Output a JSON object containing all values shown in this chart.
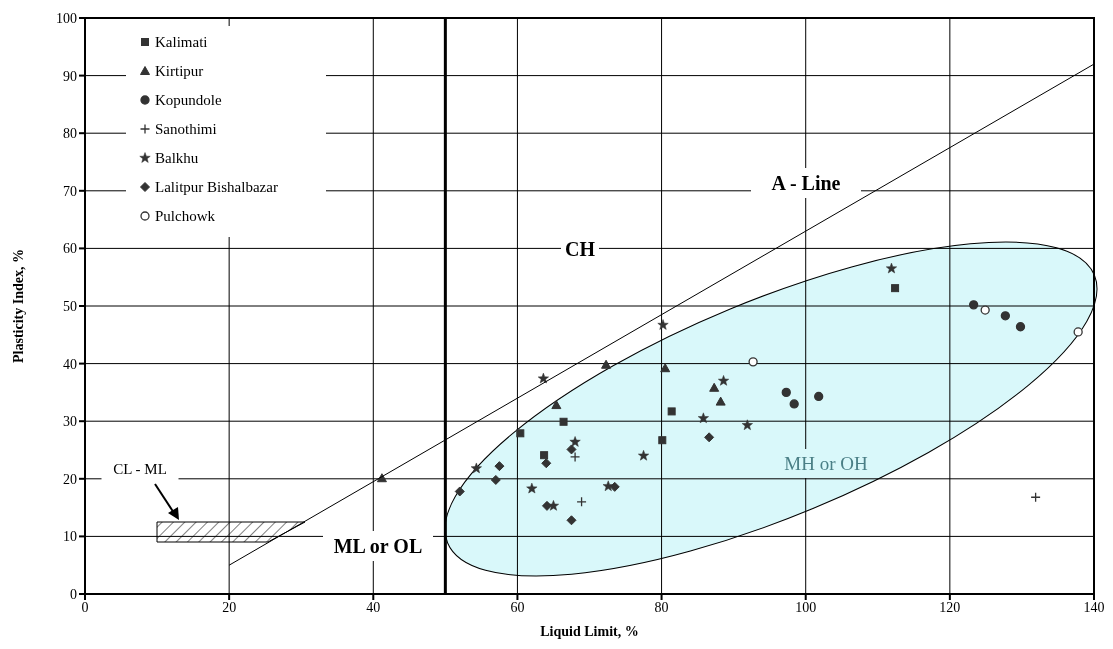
{
  "chart_data": {
    "type": "scatter",
    "xlabel": "Liquid Limit, %",
    "ylabel": "Plasticity Index, %",
    "xlim": [
      0,
      140
    ],
    "xticks": [
      0,
      20,
      40,
      60,
      80,
      100,
      120,
      140
    ],
    "ylim": [
      0,
      100
    ],
    "yticks": [
      0,
      10,
      20,
      30,
      40,
      50,
      60,
      70,
      80,
      90,
      100
    ],
    "grid": true,
    "legend": "top left",
    "annotations": [
      "CH",
      "A - Line",
      "MH or OH",
      "ML or OL",
      "CL - ML"
    ],
    "ref_lines": [
      {
        "axis": "x",
        "value": 50,
        "color": "#000000"
      }
    ],
    "series": [
      {
        "name": "Kalimati",
        "color": "#333333",
        "marker": "square",
        "x": [
          60.4,
          63.7,
          66.4,
          80.1,
          81.4,
          112.4
        ],
        "values": [
          27.9,
          24.1,
          29.9,
          26.7,
          31.7,
          53.1
        ]
      },
      {
        "name": "Kirtipur",
        "color": "#333333",
        "marker": "triangle",
        "x": [
          41.2,
          65.4,
          72.3,
          80.5,
          87.3,
          88.2
        ],
        "values": [
          20.1,
          32.8,
          39.8,
          39.2,
          35.8,
          33.4
        ]
      },
      {
        "name": "Kopundole",
        "color": "#333333",
        "marker": "circle",
        "x": [
          97.3,
          98.4,
          101.8,
          123.3,
          127.7,
          129.8
        ],
        "values": [
          35.0,
          33.0,
          34.3,
          50.2,
          48.3,
          46.4
        ]
      },
      {
        "name": "Sanothimi",
        "color": "#333333",
        "marker": "cross",
        "x": [
          68.0,
          68.9,
          131.9
        ],
        "values": [
          23.8,
          16.0,
          16.8
        ]
      },
      {
        "name": "Balkhu",
        "color": "#333333",
        "marker": "star",
        "x": [
          54.3,
          62.0,
          63.6,
          65.0,
          68.0,
          72.6,
          77.5,
          80.2,
          85.8,
          88.6,
          91.9,
          111.9
        ],
        "values": [
          21.8,
          18.3,
          37.4,
          15.3,
          26.4,
          18.7,
          24.0,
          46.7,
          30.5,
          37.0,
          29.3,
          56.5
        ]
      },
      {
        "name": "Lalitpur Bishalbazar",
        "color": "#333333",
        "marker": "diamond",
        "x": [
          52.0,
          57.0,
          57.5,
          64.0,
          64.1,
          67.5,
          67.5,
          73.5,
          86.6
        ],
        "values": [
          17.8,
          19.8,
          22.2,
          22.7,
          15.3,
          25.1,
          12.8,
          18.6,
          27.2
        ]
      },
      {
        "name": "Pulchowk",
        "color": "#ffffff",
        "marker": "circle",
        "x": [
          92.7,
          124.9,
          137.8
        ],
        "values": [
          40.3,
          49.3,
          45.5
        ]
      },
      {
        "type": "line",
        "color": "#000000",
        "x": [
          20,
          140
        ],
        "values": [
          5,
          92
        ]
      }
    ]
  }
}
